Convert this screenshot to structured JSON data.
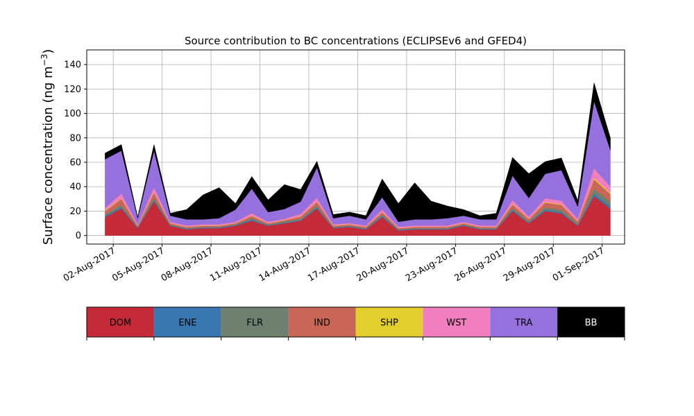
{
  "chart_data": {
    "type": "area",
    "title": "Source contribution to BC concentrations (ECLIPSEv6 and GFED4)",
    "ylabel": "Surface concentration (ng m",
    "ylabel_sup": "−3",
    "ylabel_end": ")",
    "xlabel": "",
    "ylim": [
      -7,
      152
    ],
    "xlim": [
      "2017-07-31T09:00",
      "2017-09-02T09:00"
    ],
    "yticks": [
      0,
      20,
      40,
      60,
      80,
      100,
      120,
      140
    ],
    "xticks": [
      {
        "date": "2017-08-02",
        "label": "02-Aug-2017"
      },
      {
        "date": "2017-08-05",
        "label": "05-Aug-2017"
      },
      {
        "date": "2017-08-08",
        "label": "08-Aug-2017"
      },
      {
        "date": "2017-08-11",
        "label": "11-Aug-2017"
      },
      {
        "date": "2017-08-14",
        "label": "14-Aug-2017"
      },
      {
        "date": "2017-08-17",
        "label": "17-Aug-2017"
      },
      {
        "date": "2017-08-20",
        "label": "20-Aug-2017"
      },
      {
        "date": "2017-08-23",
        "label": "23-Aug-2017"
      },
      {
        "date": "2017-08-26",
        "label": "26-Aug-2017"
      },
      {
        "date": "2017-08-29",
        "label": "29-Aug-2017"
      },
      {
        "date": "2017-09-01",
        "label": "01-Sep-2017"
      }
    ],
    "grid": true,
    "stacked": true,
    "legend_position": "below",
    "x": [
      "2017-08-01",
      "2017-08-02",
      "2017-08-03",
      "2017-08-04",
      "2017-08-05",
      "2017-08-06",
      "2017-08-07",
      "2017-08-08",
      "2017-08-09",
      "2017-08-10",
      "2017-08-11",
      "2017-08-12",
      "2017-08-13",
      "2017-08-14",
      "2017-08-15",
      "2017-08-16",
      "2017-08-17",
      "2017-08-18",
      "2017-08-19",
      "2017-08-20",
      "2017-08-21",
      "2017-08-22",
      "2017-08-23",
      "2017-08-24",
      "2017-08-25",
      "2017-08-26",
      "2017-08-27",
      "2017-08-28",
      "2017-08-29",
      "2017-08-30",
      "2017-08-31",
      "2017-09-01"
    ],
    "series": [
      {
        "name": "DOM",
        "color": "#c52a38",
        "values": [
          15,
          22,
          6,
          28,
          8,
          5,
          6,
          6,
          8,
          12,
          8,
          10,
          12,
          22,
          6,
          7,
          5,
          15,
          4,
          5,
          5,
          5,
          8,
          5,
          5,
          20,
          10,
          20,
          18,
          8,
          32,
          22
        ]
      },
      {
        "name": "ENE",
        "color": "#3a77b0",
        "values": [
          1,
          1,
          0.5,
          1,
          0.5,
          0.5,
          0.5,
          0.5,
          0.5,
          1,
          0.5,
          0.5,
          0.5,
          1,
          0.5,
          0.5,
          0.5,
          1,
          0.5,
          0.5,
          0.5,
          0.5,
          0.5,
          0.5,
          0.5,
          1,
          0.5,
          1,
          1,
          0.5,
          2,
          2
        ]
      },
      {
        "name": "FLR",
        "color": "#6e8170",
        "values": [
          1,
          2,
          0.5,
          2,
          0.5,
          0.5,
          0.5,
          0.5,
          0.5,
          1,
          0.5,
          1,
          1,
          1.5,
          0.5,
          0.5,
          0.5,
          1,
          0.5,
          0.5,
          0.5,
          0.5,
          0.5,
          0.5,
          0.5,
          1.5,
          1,
          2,
          2,
          1,
          4,
          4
        ]
      },
      {
        "name": "IND",
        "color": "#c86757",
        "values": [
          3,
          5,
          1,
          4,
          1,
          1,
          1,
          1,
          1,
          2,
          1,
          1,
          2,
          3,
          1,
          1,
          1,
          2,
          1,
          1,
          1,
          1,
          1,
          1,
          1,
          3,
          2,
          4,
          4,
          2,
          8,
          6
        ]
      },
      {
        "name": "SHP",
        "color": "#e2cf2e",
        "values": [
          0.5,
          0.5,
          0.2,
          0.5,
          0.2,
          0.2,
          0.2,
          0.2,
          0.2,
          0.3,
          0.2,
          0.2,
          0.2,
          0.3,
          0.2,
          0.2,
          0.2,
          0.3,
          0.2,
          0.2,
          0.2,
          0.2,
          0.2,
          0.2,
          0.2,
          0.5,
          0.2,
          0.5,
          0.5,
          0.2,
          1,
          1
        ]
      },
      {
        "name": "WST",
        "color": "#f17fbf",
        "values": [
          2,
          4,
          1,
          4,
          1,
          1,
          1,
          1,
          1,
          2,
          1,
          1,
          2,
          3,
          1,
          1,
          1,
          2,
          1,
          1,
          1,
          1,
          1,
          1,
          1,
          3,
          2,
          3,
          3,
          2,
          8,
          5
        ]
      },
      {
        "name": "TRA",
        "color": "#9670dc",
        "values": [
          40,
          35,
          5,
          30,
          5,
          5,
          4,
          5,
          10,
          20,
          8,
          8,
          10,
          25,
          5,
          6,
          5,
          10,
          4,
          5,
          5,
          6,
          5,
          5,
          5,
          20,
          15,
          20,
          25,
          10,
          55,
          30
        ]
      },
      {
        "name": "BB",
        "color": "#000000",
        "values": [
          5,
          5,
          1,
          5,
          2,
          8,
          20,
          25,
          5,
          10,
          10,
          20,
          10,
          5,
          3,
          3,
          3,
          15,
          15,
          30,
          15,
          10,
          5,
          3,
          5,
          15,
          20,
          10,
          10,
          5,
          15,
          10
        ]
      }
    ]
  }
}
